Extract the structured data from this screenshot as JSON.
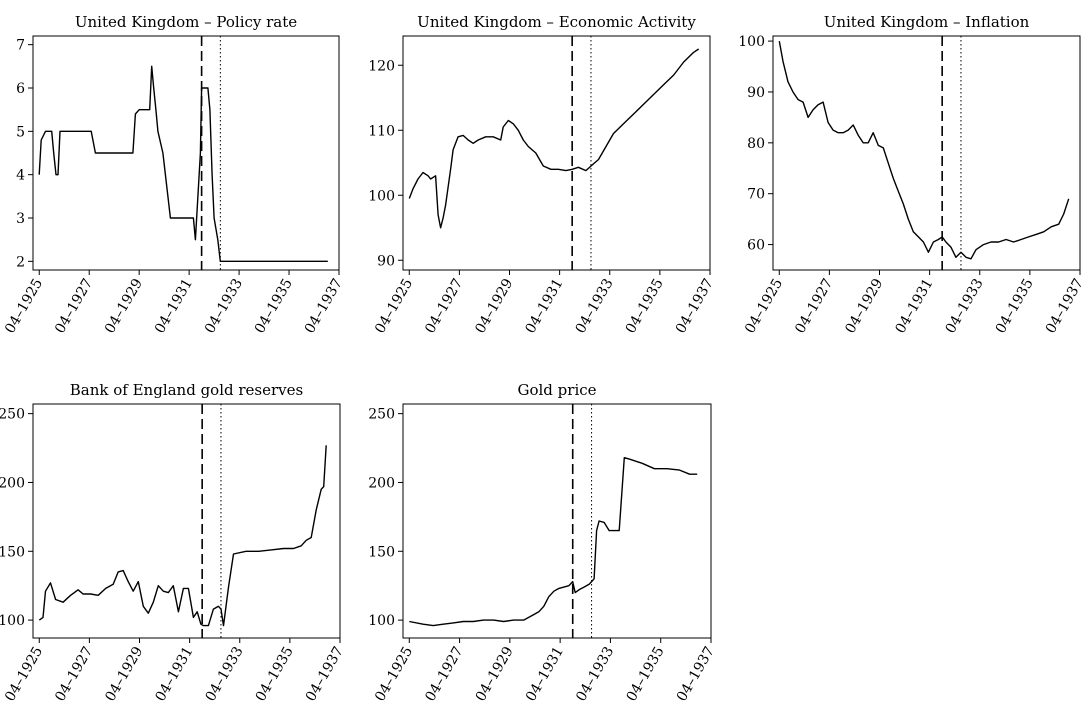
{
  "chart_data": [
    {
      "id": "policy_rate",
      "type": "line",
      "title": "United Kingdom – Policy rate",
      "xlabel": "",
      "ylabel": "",
      "xlim": [
        1925.0,
        1937.25
      ],
      "ylim": [
        1.8,
        7.2
      ],
      "yticks": [
        2,
        3,
        4,
        5,
        6,
        7
      ],
      "xticks": [
        1925.25,
        1927.25,
        1929.25,
        1931.25,
        1933.25,
        1935.25,
        1937.25
      ],
      "xtick_labels": [
        "04–1925",
        "04–1927",
        "04–1929",
        "04–1931",
        "04–1933",
        "04–1935",
        "04–1937"
      ],
      "dashed_vline": 1931.75,
      "dotted_vline": 1932.5,
      "series": [
        {
          "x": [
            1925.25,
            1925.33,
            1925.5,
            1925.75,
            1925.83,
            1925.92,
            1926.0,
            1926.08,
            1926.17,
            1926.92,
            1927.0,
            1927.33,
            1927.5,
            1928.5,
            1928.83,
            1929.0,
            1929.1,
            1929.25,
            1929.5,
            1929.67,
            1929.75,
            1929.83,
            1929.92,
            1930.0,
            1930.2,
            1930.4,
            1930.5,
            1930.67,
            1931.0,
            1931.25,
            1931.42,
            1931.5,
            1931.6,
            1931.7,
            1931.75,
            1932.0,
            1932.08,
            1932.17,
            1932.25,
            1932.4,
            1932.5,
            1933.0,
            1934.0,
            1935.0,
            1936.0,
            1936.8
          ],
          "y": [
            4.0,
            4.8,
            5.0,
            5.0,
            4.5,
            4.0,
            4.0,
            5.0,
            5.0,
            5.0,
            5.0,
            5.0,
            4.5,
            4.5,
            4.5,
            4.5,
            5.4,
            5.5,
            5.5,
            5.5,
            6.5,
            6.0,
            5.5,
            5.0,
            4.5,
            3.5,
            3.0,
            3.0,
            3.0,
            3.0,
            3.0,
            2.5,
            3.5,
            4.5,
            6.0,
            6.0,
            5.5,
            4.0,
            3.0,
            2.5,
            2.0,
            2.0,
            2.0,
            2.0,
            2.0,
            2.0
          ]
        }
      ]
    },
    {
      "id": "economic_activity",
      "type": "line",
      "title": "United Kingdom – Economic Activity",
      "xlabel": "",
      "ylabel": "",
      "xlim": [
        1925.0,
        1937.25
      ],
      "ylim": [
        88.5,
        124.5
      ],
      "yticks": [
        90,
        100,
        110,
        120
      ],
      "xticks": [
        1925.25,
        1927.25,
        1929.25,
        1931.25,
        1933.25,
        1935.25,
        1937.25
      ],
      "xtick_labels": [
        "04–1925",
        "04–1927",
        "04–1929",
        "04–1931",
        "04–1933",
        "04–1935",
        "04–1937"
      ],
      "dashed_vline": 1931.75,
      "dotted_vline": 1932.5,
      "series": [
        {
          "x": [
            1925.25,
            1925.4,
            1925.6,
            1925.8,
            1926.0,
            1926.1,
            1926.3,
            1926.4,
            1926.5,
            1926.6,
            1926.7,
            1926.9,
            1927.0,
            1927.2,
            1927.4,
            1927.6,
            1927.8,
            1928.0,
            1928.3,
            1928.6,
            1928.9,
            1929.0,
            1929.2,
            1929.4,
            1929.6,
            1929.8,
            1930.0,
            1930.3,
            1930.6,
            1930.9,
            1931.2,
            1931.5,
            1931.75,
            1932.0,
            1932.3,
            1932.5,
            1932.8,
            1933.1,
            1933.4,
            1933.8,
            1934.2,
            1934.6,
            1935.0,
            1935.4,
            1935.8,
            1936.2,
            1936.6,
            1936.8
          ],
          "y": [
            99.5,
            101.0,
            102.5,
            103.5,
            103.0,
            102.5,
            103.0,
            97.0,
            95.0,
            96.5,
            98.5,
            104.0,
            107.0,
            109.0,
            109.2,
            108.5,
            108.0,
            108.5,
            109.0,
            109.0,
            108.5,
            110.5,
            111.5,
            111.0,
            110.0,
            108.5,
            107.5,
            106.5,
            104.5,
            104.0,
            104.0,
            103.8,
            104.0,
            104.3,
            103.8,
            104.5,
            105.5,
            107.5,
            109.5,
            111.0,
            112.5,
            114.0,
            115.5,
            117.0,
            118.5,
            120.5,
            122.0,
            122.5
          ]
        }
      ]
    },
    {
      "id": "inflation",
      "type": "line",
      "title": "United Kingdom – Inflation",
      "xlabel": "",
      "ylabel": "",
      "xlim": [
        1925.0,
        1937.25
      ],
      "ylim": [
        55.0,
        101.0
      ],
      "yticks": [
        60,
        70,
        80,
        90,
        100
      ],
      "xticks": [
        1925.25,
        1927.25,
        1929.25,
        1931.25,
        1933.25,
        1935.25,
        1937.25
      ],
      "xtick_labels": [
        "04–1925",
        "04–1927",
        "04–1929",
        "04–1931",
        "04–1933",
        "04–1935",
        "04–1937"
      ],
      "dashed_vline": 1931.75,
      "dotted_vline": 1932.5,
      "series": [
        {
          "x": [
            1925.25,
            1925.4,
            1925.6,
            1925.8,
            1926.0,
            1926.2,
            1926.4,
            1926.6,
            1926.8,
            1927.0,
            1927.2,
            1927.4,
            1927.6,
            1927.8,
            1928.0,
            1928.2,
            1928.4,
            1928.6,
            1928.8,
            1929.0,
            1929.2,
            1929.4,
            1929.6,
            1929.8,
            1930.0,
            1930.2,
            1930.4,
            1930.6,
            1930.8,
            1931.0,
            1931.2,
            1931.4,
            1931.6,
            1931.75,
            1931.9,
            1932.1,
            1932.3,
            1932.5,
            1932.7,
            1932.9,
            1933.1,
            1933.4,
            1933.7,
            1934.0,
            1934.3,
            1934.6,
            1934.9,
            1935.2,
            1935.5,
            1935.8,
            1936.1,
            1936.4,
            1936.6,
            1936.8
          ],
          "y": [
            100.0,
            96.0,
            92.0,
            90.0,
            88.5,
            88.0,
            85.0,
            86.5,
            87.5,
            88.0,
            84.0,
            82.5,
            82.0,
            82.0,
            82.5,
            83.5,
            81.5,
            80.0,
            80.0,
            82.0,
            79.5,
            79.0,
            76.0,
            73.0,
            70.5,
            68.0,
            65.0,
            62.5,
            61.5,
            60.5,
            58.5,
            60.5,
            61.0,
            61.5,
            60.5,
            59.5,
            57.5,
            58.5,
            57.5,
            57.2,
            59.0,
            60.0,
            60.5,
            60.5,
            61.0,
            60.5,
            61.0,
            61.5,
            62.0,
            62.5,
            63.5,
            64.0,
            66.0,
            69.0
          ]
        }
      ]
    },
    {
      "id": "gold_reserves",
      "type": "line",
      "title": "Bank of England gold reserves",
      "xlabel": "",
      "ylabel": "",
      "xlim": [
        1925.0,
        1937.25
      ],
      "ylim": [
        87.0,
        257.0
      ],
      "yticks": [
        100,
        150,
        200,
        250
      ],
      "xticks": [
        1925.25,
        1927.25,
        1929.25,
        1931.25,
        1933.25,
        1935.25,
        1937.25
      ],
      "xtick_labels": [
        "04–1925",
        "04–1927",
        "04–1929",
        "04–1931",
        "04–1933",
        "04–1935",
        "04–1937"
      ],
      "dashed_vline": 1931.75,
      "dotted_vline": 1932.5,
      "series": [
        {
          "x": [
            1925.25,
            1925.4,
            1925.5,
            1925.7,
            1925.9,
            1926.2,
            1926.5,
            1926.8,
            1927.0,
            1927.3,
            1927.6,
            1927.9,
            1928.2,
            1928.4,
            1928.6,
            1928.8,
            1929.0,
            1929.2,
            1929.4,
            1929.6,
            1929.8,
            1930.0,
            1930.2,
            1930.4,
            1930.6,
            1930.8,
            1931.0,
            1931.2,
            1931.4,
            1931.55,
            1931.7,
            1931.8,
            1932.0,
            1932.2,
            1932.4,
            1932.5,
            1932.6,
            1932.8,
            1933.0,
            1933.5,
            1934.0,
            1934.5,
            1935.0,
            1935.4,
            1935.7,
            1935.9,
            1936.1,
            1936.3,
            1936.5,
            1936.6,
            1936.7
          ],
          "y": [
            100.0,
            102.0,
            121.0,
            127.0,
            115.0,
            113.0,
            118.0,
            122.0,
            119.0,
            119.0,
            118.0,
            123.0,
            126.0,
            135.0,
            136.0,
            128.0,
            121.0,
            128.0,
            110.0,
            105.0,
            113.0,
            125.0,
            121.0,
            120.0,
            125.0,
            106.0,
            123.0,
            123.0,
            102.0,
            106.0,
            97.0,
            96.0,
            96.0,
            108.0,
            110.0,
            108.0,
            96.0,
            124.0,
            148.0,
            150.0,
            150.0,
            151.0,
            152.0,
            152.0,
            154.0,
            158.0,
            160.0,
            180.0,
            195.0,
            197.0,
            227.0
          ]
        }
      ]
    },
    {
      "id": "gold_price",
      "type": "line",
      "title": "Gold price",
      "xlabel": "",
      "ylabel": "",
      "xlim": [
        1925.0,
        1937.25
      ],
      "ylim": [
        87.0,
        257.0
      ],
      "yticks": [
        100,
        150,
        200,
        250
      ],
      "xticks": [
        1925.25,
        1927.25,
        1929.25,
        1931.25,
        1933.25,
        1935.25,
        1937.25
      ],
      "xtick_labels": [
        "04–1925",
        "04–1927",
        "04–1929",
        "04–1931",
        "04–1933",
        "04–1935",
        "04–1937"
      ],
      "dashed_vline": 1931.75,
      "dotted_vline": 1932.5,
      "series": [
        {
          "x": [
            1925.25,
            1925.8,
            1926.2,
            1926.6,
            1927.0,
            1927.4,
            1927.8,
            1928.2,
            1928.6,
            1929.0,
            1929.4,
            1929.8,
            1930.0,
            1930.2,
            1930.4,
            1930.6,
            1930.8,
            1931.0,
            1931.2,
            1931.4,
            1931.6,
            1931.75,
            1931.85,
            1932.0,
            1932.2,
            1932.4,
            1932.5,
            1932.6,
            1932.7,
            1932.8,
            1933.0,
            1933.2,
            1933.3,
            1933.6,
            1933.8,
            1934.0,
            1934.5,
            1935.0,
            1935.5,
            1936.0,
            1936.4,
            1936.7
          ],
          "y": [
            99.0,
            97.0,
            96.0,
            97.0,
            98.0,
            99.0,
            99.0,
            100.0,
            100.0,
            99.0,
            100.0,
            100.0,
            102.0,
            104.0,
            106.0,
            110.0,
            117.0,
            121.0,
            123.0,
            124.0,
            125.0,
            128.0,
            120.0,
            122.0,
            124.0,
            126.0,
            128.0,
            130.0,
            165.0,
            172.0,
            171.0,
            165.0,
            165.0,
            165.0,
            218.0,
            217.0,
            214.0,
            210.0,
            210.0,
            209.0,
            206.0,
            206.0
          ]
        }
      ]
    }
  ]
}
